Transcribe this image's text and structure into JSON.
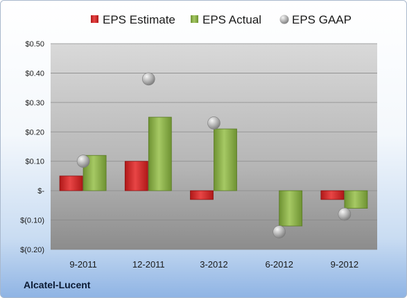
{
  "chart_data": {
    "type": "bar",
    "title": "",
    "xlabel": "",
    "ylabel": "",
    "categories": [
      "9-2011",
      "12-2011",
      "3-2012",
      "6-2012",
      "9-2012"
    ],
    "series": [
      {
        "name": "EPS Estimate",
        "kind": "bar",
        "color": "#d42a2a",
        "values": [
          0.05,
          0.1,
          -0.03,
          null,
          -0.03
        ]
      },
      {
        "name": "EPS Actual",
        "kind": "bar",
        "color": "#8db44a",
        "values": [
          0.12,
          0.25,
          0.21,
          -0.12,
          -0.06
        ]
      },
      {
        "name": "EPS GAAP",
        "kind": "marker",
        "color": "#a8a8a8",
        "values": [
          0.1,
          0.38,
          0.23,
          -0.14,
          -0.08
        ]
      }
    ],
    "ylim": [
      -0.2,
      0.5
    ],
    "yticks": [
      0.5,
      0.4,
      0.3,
      0.2,
      0.1,
      0.0,
      -0.1,
      -0.2
    ],
    "ytick_labels": [
      "$0.50",
      "$0.40",
      "$0.30",
      "$0.20",
      "$0.10",
      "$-",
      "$(0.10)",
      "$(0.20)"
    ],
    "grid": true,
    "legend_position": "top"
  },
  "company_name": "Alcatel-Lucent"
}
